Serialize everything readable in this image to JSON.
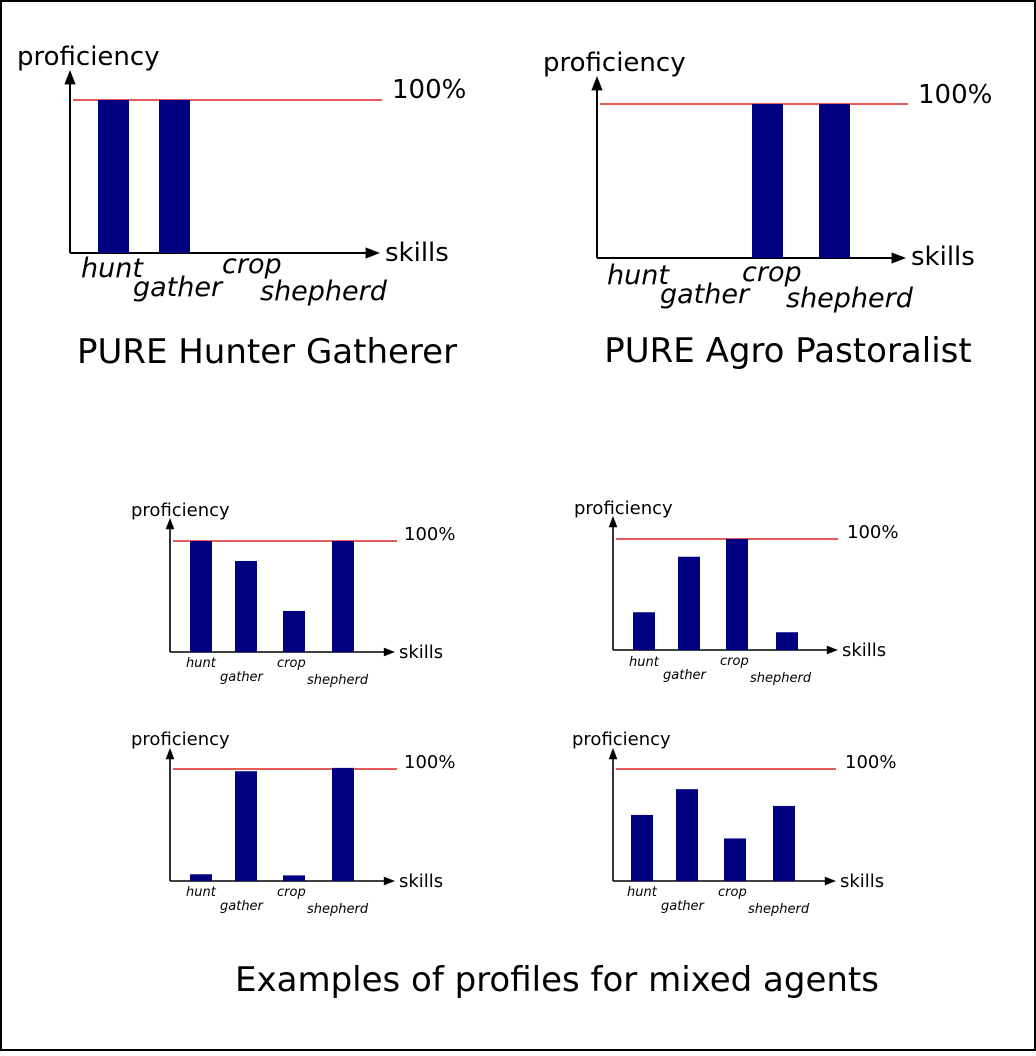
{
  "colors": {
    "bar": "#000080",
    "reference_line": "#dd2222",
    "axis": "#000000"
  },
  "captions": {
    "pure_hunter_gatherer": "PURE Hunter Gatherer",
    "pure_agro_pastoralist": "PURE Agro Pastoralist",
    "mixed_examples": "Examples of profiles for mixed agents"
  },
  "chart_data": [
    {
      "type": "bar",
      "ylabel": "proficiency",
      "xlabel": "skills",
      "reference_label": "100%",
      "reference_value": 100,
      "categories": [
        "hunt",
        "gather",
        "crop",
        "shepherd"
      ],
      "values": [
        100,
        100,
        0,
        0
      ]
    },
    {
      "type": "bar",
      "ylabel": "proficiency",
      "xlabel": "skills",
      "reference_label": "100%",
      "reference_value": 100,
      "categories": [
        "hunt",
        "gather",
        "crop",
        "shepherd"
      ],
      "values": [
        0,
        0,
        100,
        100
      ]
    },
    {
      "type": "bar",
      "ylabel": "proficiency",
      "xlabel": "skills",
      "reference_label": "100%",
      "reference_value": 100,
      "categories": [
        "hunt",
        "gather",
        "crop",
        "shepherd"
      ],
      "values": [
        100,
        82,
        37,
        100
      ]
    },
    {
      "type": "bar",
      "ylabel": "proficiency",
      "xlabel": "skills",
      "reference_label": "100%",
      "reference_value": 100,
      "categories": [
        "hunt",
        "gather",
        "crop",
        "shepherd"
      ],
      "values": [
        34,
        84,
        100,
        16
      ]
    },
    {
      "type": "bar",
      "ylabel": "proficiency",
      "xlabel": "skills",
      "reference_label": "100%",
      "reference_value": 100,
      "categories": [
        "hunt",
        "gather",
        "crop",
        "shepherd"
      ],
      "values": [
        6,
        98,
        5,
        101
      ]
    },
    {
      "type": "bar",
      "ylabel": "proficiency",
      "xlabel": "skills",
      "reference_label": "100%",
      "reference_value": 100,
      "categories": [
        "hunt",
        "gather",
        "crop",
        "shepherd"
      ],
      "values": [
        59,
        82,
        38,
        67
      ]
    }
  ]
}
